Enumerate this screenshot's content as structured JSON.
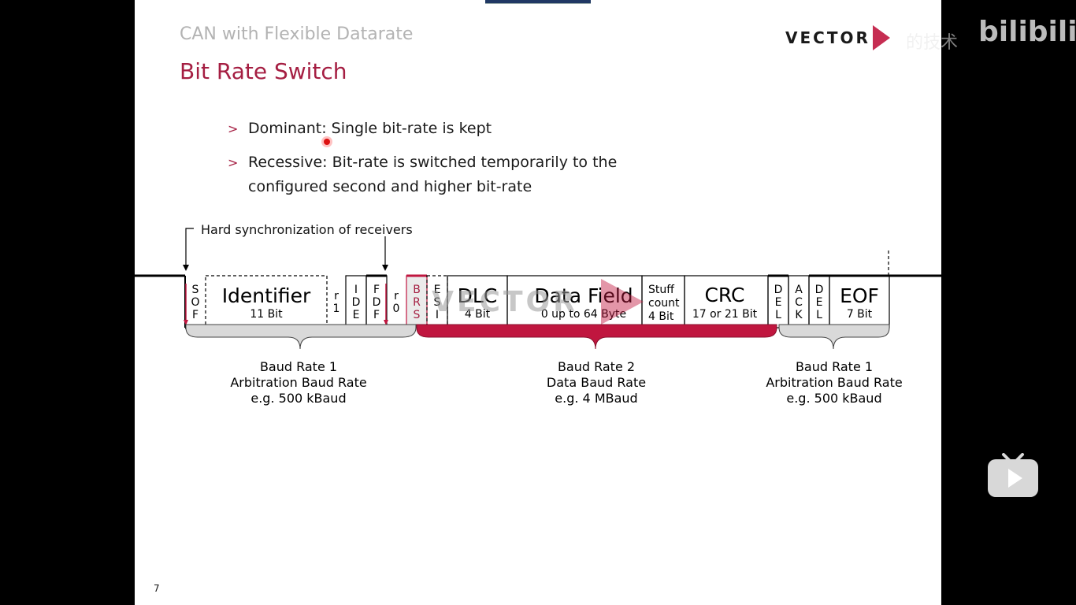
{
  "slide": {
    "subtitle": "CAN with Flexible Datarate",
    "title": "Bit Rate Switch",
    "logo_text": "VECTOR",
    "page_number": "7",
    "bullets": [
      {
        "marker": ">",
        "line1": "Dominant: Single bit-rate is kept",
        "line2": ""
      },
      {
        "marker": ">",
        "line1": "Recessive: Bit-rate is switched temporarily to the",
        "line2": "configured second and higher bit-rate"
      }
    ]
  },
  "diagram": {
    "hard_sync_label": "Hard synchronization of receivers",
    "watermark": "VECTOR",
    "fields": {
      "sof": [
        "S",
        "O",
        "F"
      ],
      "identifier": {
        "name": "Identifier",
        "sub": "11 Bit"
      },
      "r1": [
        "r",
        "1"
      ],
      "ide": [
        "I",
        "D",
        "E"
      ],
      "fdf": [
        "F",
        "D",
        "F"
      ],
      "r0": [
        "r",
        "0"
      ],
      "brs": [
        "B",
        "R",
        "S"
      ],
      "esi": [
        "E",
        "S",
        "I"
      ],
      "dlc": {
        "name": "DLC",
        "sub": "4 Bit"
      },
      "data": {
        "name": "Data Field",
        "sub": "0 up to 64 Byte"
      },
      "stuff": [
        "Stuff",
        "count",
        "4 Bit"
      ],
      "crc": {
        "name": "CRC",
        "sub": "17 or 21 Bit"
      },
      "del1": [
        "D",
        "E",
        "L"
      ],
      "ack": [
        "A",
        "C",
        "K"
      ],
      "del2": [
        "D",
        "E",
        "L"
      ],
      "eof": {
        "name": "EOF",
        "sub": "7 Bit"
      }
    },
    "brackets": [
      {
        "line1": "Baud Rate 1",
        "line2": "Arbitration Baud Rate",
        "line3": "e.g. 500 kBaud"
      },
      {
        "line1": "Baud Rate 2",
        "line2": "Data Baud Rate",
        "line3": "e.g. 4 MBaud"
      },
      {
        "line1": "Baud Rate 1",
        "line2": "Arbitration Baud Rate",
        "line3": "e.g. 500 kBaud"
      }
    ],
    "colors": {
      "accent": "#a51e42",
      "data_phase": "#c0163f",
      "arbitration_phase": "#d9d9d9"
    }
  },
  "overlay": {
    "watermark_logo": "bilibili",
    "watermark_text": "的技术"
  }
}
